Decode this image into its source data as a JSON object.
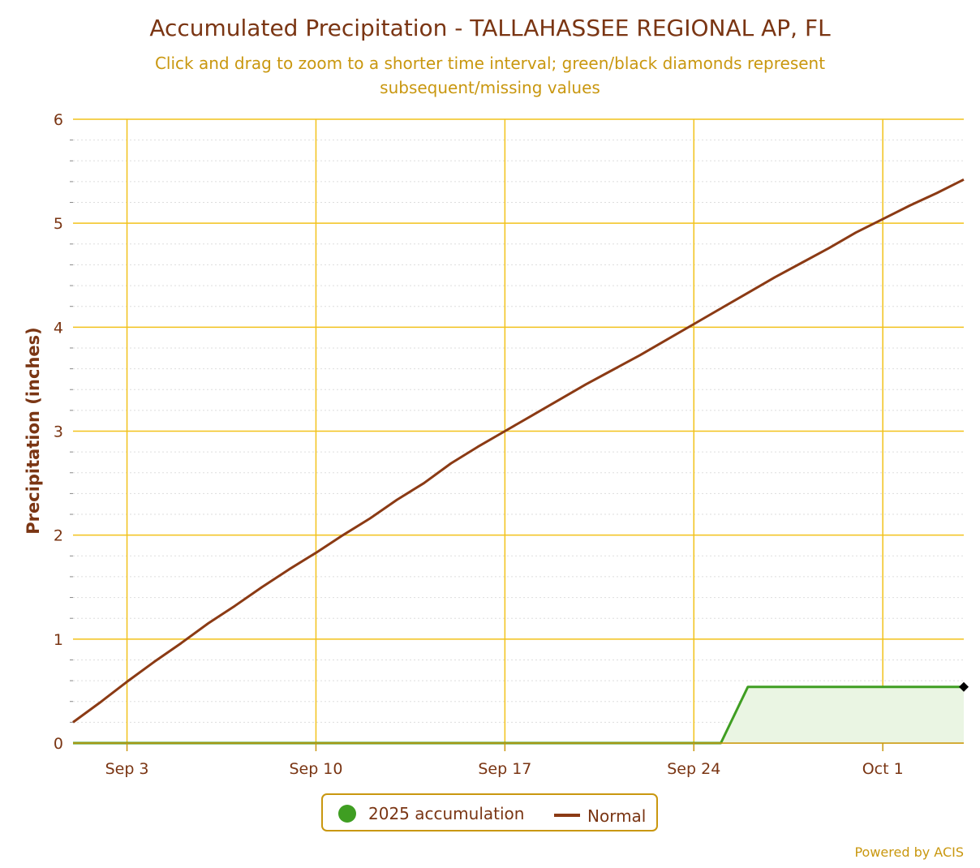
{
  "chart_data": {
    "type": "line",
    "title": "Accumulated Precipitation - TALLAHASSEE REGIONAL AP, FL",
    "subtitle_lines": [
      "Click and drag to zoom to a shorter time interval; green/black diamonds represent",
      "subsequent/missing values"
    ],
    "ylabel": "Precipitation (inches)",
    "xlabel": "",
    "ylim": [
      0,
      6
    ],
    "yticks": [
      0,
      1,
      2,
      3,
      4,
      5,
      6
    ],
    "y_minor_step": 0.2,
    "xlim_days": [
      1,
      34
    ],
    "xticks": [
      {
        "day": 3,
        "label": "Sep 3"
      },
      {
        "day": 10,
        "label": "Sep 10"
      },
      {
        "day": 17,
        "label": "Sep 17"
      },
      {
        "day": 24,
        "label": "Sep 24"
      },
      {
        "day": 31,
        "label": "Oct 1"
      }
    ],
    "grid": true,
    "series": [
      {
        "name": "2025 accumulation",
        "color": "#3f9e22",
        "fill_color": "#eaf5e3",
        "marker": "circle",
        "x_days": [
          1,
          2,
          3,
          4,
          5,
          6,
          7,
          8,
          9,
          10,
          11,
          12,
          13,
          14,
          15,
          16,
          17,
          18,
          19,
          20,
          21,
          22,
          23,
          24,
          25,
          26,
          27,
          28,
          29,
          30,
          31,
          32,
          33,
          34
        ],
        "values": [
          0,
          0,
          0,
          0,
          0,
          0,
          0,
          0,
          0,
          0,
          0,
          0,
          0,
          0,
          0,
          0,
          0,
          0,
          0,
          0,
          0,
          0,
          0,
          0,
          0,
          0.54,
          0.54,
          0.54,
          0.54,
          0.54,
          0.54,
          0.54,
          0.54,
          0.54
        ],
        "missing_marker": {
          "day": 34,
          "value": 0.54,
          "color": "#000000"
        }
      },
      {
        "name": "Normal",
        "color": "#8b3a14",
        "x_days": [
          1,
          2,
          3,
          4,
          5,
          6,
          7,
          8,
          9,
          10,
          11,
          12,
          13,
          14,
          15,
          16,
          17,
          18,
          19,
          20,
          21,
          22,
          23,
          24,
          25,
          26,
          27,
          28,
          29,
          30,
          31,
          32,
          33,
          34
        ],
        "values": [
          0.2,
          0.39,
          0.59,
          0.78,
          0.96,
          1.15,
          1.32,
          1.5,
          1.67,
          1.83,
          2.0,
          2.16,
          2.34,
          2.5,
          2.69,
          2.85,
          3.0,
          3.15,
          3.3,
          3.45,
          3.59,
          3.73,
          3.88,
          4.03,
          4.18,
          4.33,
          4.48,
          4.62,
          4.76,
          4.91,
          5.04,
          5.17,
          5.29,
          5.42
        ]
      }
    ],
    "legend": {
      "placement": "bottom-center",
      "items": [
        {
          "label": "2025 accumulation",
          "symbol": "circle",
          "color": "#3f9e22"
        },
        {
          "label": "Normal",
          "symbol": "line",
          "color": "#8b3a14"
        }
      ]
    },
    "credits": "Powered by ACIS",
    "colors": {
      "title": "#7a3513",
      "subtitle": "#c9970f",
      "grid": "#f2c21b",
      "minor_grid": "#dddddd",
      "axis": "#c9970f",
      "legend_border": "#c9970f"
    }
  }
}
